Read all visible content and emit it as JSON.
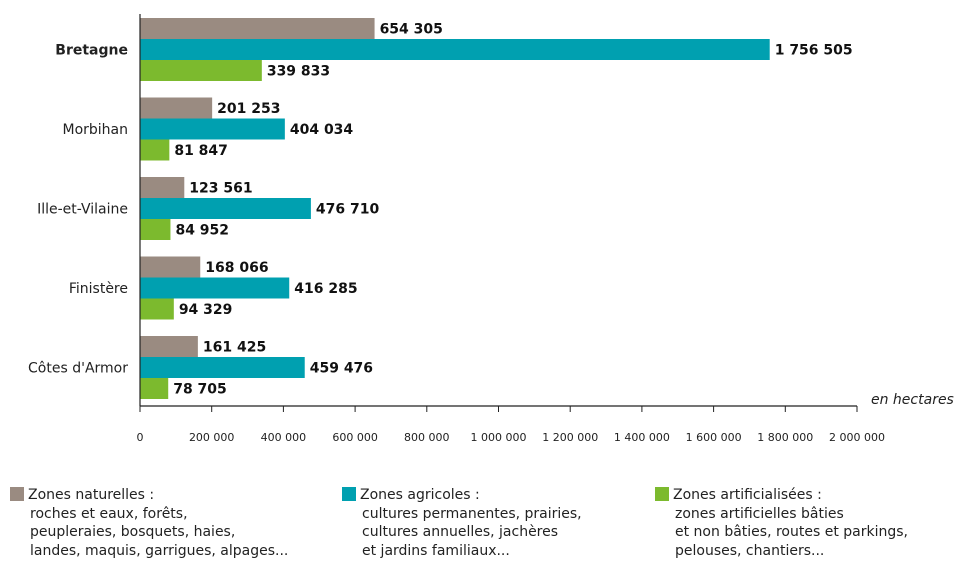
{
  "chart_data": {
    "type": "bar",
    "orientation": "horizontal",
    "categories": [
      "Bretagne",
      "Morbihan",
      "Ille-et-Vilaine",
      "Finistère",
      "Côtes d'Armor"
    ],
    "highlight_category": "Bretagne",
    "series": [
      {
        "name": "Zones naturelles",
        "color": "#9a8b81",
        "values": [
          654305,
          201253,
          123561,
          168066,
          161425
        ],
        "labels": [
          "654 305",
          "201 253",
          "123 561",
          "168 066",
          "161 425"
        ]
      },
      {
        "name": "Zones agricoles",
        "color": "#00a0b0",
        "values": [
          1756505,
          404034,
          476710,
          416285,
          459476
        ],
        "labels": [
          "1 756 505",
          "404 034",
          "476 710",
          "416 285",
          "459 476"
        ]
      },
      {
        "name": "Zones artificialisées",
        "color": "#7cba2e",
        "values": [
          339833,
          81847,
          84952,
          94329,
          78705
        ],
        "labels": [
          "339 833",
          "81 847",
          "84 952",
          "94 329",
          "78 705"
        ]
      }
    ],
    "xlim": [
      0,
      2000000
    ],
    "x_ticks": [
      0,
      200000,
      400000,
      600000,
      800000,
      1000000,
      1200000,
      1400000,
      1600000,
      1800000,
      2000000
    ],
    "x_tick_labels": [
      "0",
      "200 000",
      "400 000",
      "600 000",
      "800 000",
      "1 000 000",
      "1 200 000",
      "1 400 000",
      "1 600 000",
      "1 800 000",
      "2 000 000"
    ],
    "unit_label": "en hectares",
    "grid": false,
    "legend_position": "bottom"
  },
  "legend": [
    {
      "title": "Zones naturelles :",
      "description": "roches et eaux, forêts,\npeupleraies, bosquets, haies,\nlandes, maquis, garrigues, alpages...",
      "color": "#9a8b81"
    },
    {
      "title": "Zones agricoles :",
      "description": "cultures permanentes, prairies,\ncultures annuelles, jachères\net jardins familiaux...",
      "color": "#00a0b0"
    },
    {
      "title": "Zones artificialisées :",
      "description": "zones artificielles bâties\net non bâties, routes et parkings,\npelouses, chantiers...",
      "color": "#7cba2e"
    }
  ]
}
